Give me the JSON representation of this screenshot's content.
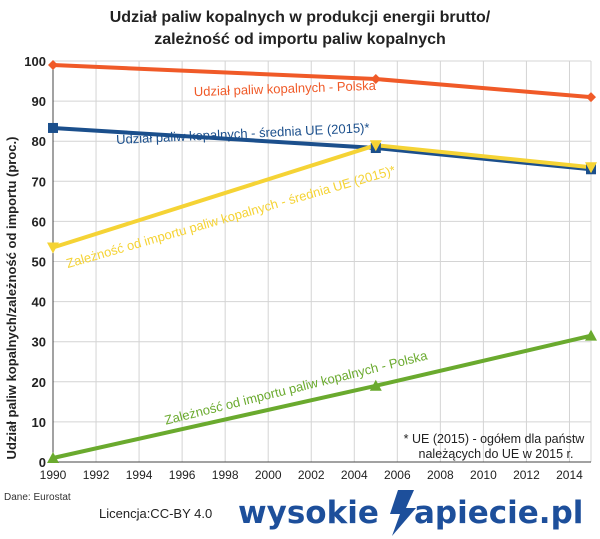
{
  "chart_data": {
    "type": "line",
    "title": [
      "Udział paliw kopalnych w produkcji energii brutto/",
      "zależność od importu paliw kopalnych"
    ],
    "ylabel": "Udział paliw kopalnych/zależność od importu (proc.)",
    "xlabel": "",
    "xlim": [
      1990,
      2015
    ],
    "ylim": [
      0,
      100
    ],
    "xticks": [
      1990,
      1992,
      1994,
      1996,
      1998,
      2000,
      2002,
      2004,
      2006,
      2008,
      2010,
      2012,
      2014
    ],
    "yticks": [
      0,
      10,
      20,
      30,
      40,
      50,
      60,
      70,
      80,
      90,
      100
    ],
    "grid": true,
    "series": [
      {
        "name": "Udział paliw kopalnych - Polska",
        "color": "#f05a28",
        "marker": "diamond",
        "x": [
          1990,
          2005,
          2015
        ],
        "y": [
          99,
          95.5,
          91
        ]
      },
      {
        "name": "Udział paliw kopalnych - średnia UE (2015)*",
        "color": "#1b4f8c",
        "marker": "square",
        "x": [
          1990,
          2005,
          2015
        ],
        "y": [
          83.3,
          78.3,
          73
        ]
      },
      {
        "name": "Zależność od importu paliw kopalnych - średnia UE (2015)*",
        "color": "#f5d335",
        "marker": "triangle-down",
        "x": [
          1990,
          2005,
          2015
        ],
        "y": [
          53.5,
          79,
          73.5
        ]
      },
      {
        "name": "Zależność od importu paliw kopalnych - Polska",
        "color": "#6aaa2e",
        "marker": "triangle-up",
        "x": [
          1990,
          2005,
          2015
        ],
        "y": [
          1,
          19,
          31.5
        ]
      }
    ],
    "footnote": [
      "* UE (2015) - ogółem dla państw",
      "należących do UE w 2015 r."
    ]
  },
  "source": "Dane: Eurostat",
  "license": "Licencja:CC-BY 4.0",
  "logo": {
    "part1": "wysokie",
    "part2": "apiecie.pl",
    "color": "#1d4f9b"
  }
}
